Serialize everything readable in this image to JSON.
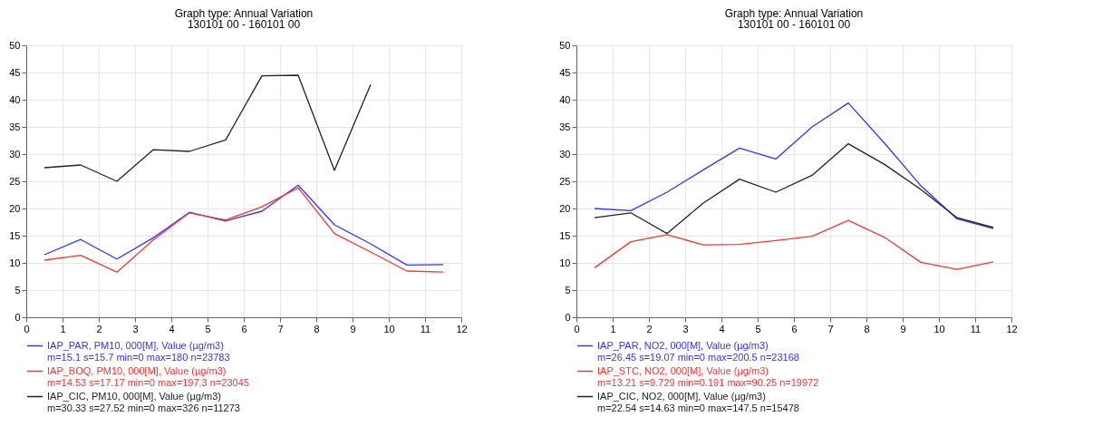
{
  "chart_data": [
    {
      "type": "line",
      "title": "Graph type: Annual Variation",
      "subtitle": "130101 00 - 160101 00",
      "x": [
        0.5,
        1.5,
        2.5,
        3.5,
        4.5,
        5.5,
        6.5,
        7.5,
        8.5,
        9.5,
        10.5,
        11.5
      ],
      "xlim": [
        0,
        12
      ],
      "xticks": [
        0,
        1,
        2,
        3,
        4,
        5,
        6,
        7,
        8,
        9,
        10,
        11,
        12
      ],
      "ylim": [
        0,
        50
      ],
      "yticks": [
        0,
        5,
        10,
        15,
        20,
        25,
        30,
        35,
        40,
        45,
        50
      ],
      "grid": true,
      "legend": "bottom",
      "series": [
        {
          "name": "IAP_PAR, PM10, 000[M], Value (µg/m3)",
          "color": "#3333ff",
          "values": [
            11.5,
            14.3,
            10.7,
            14.6,
            19.3,
            17.7,
            19.5,
            24.3,
            17.0,
            13.5,
            9.6,
            9.7
          ]
        },
        {
          "name": "IAP_BOQ, PM10, 000[M], Value (µg/m3)",
          "color": "#ff3333",
          "values": [
            10.5,
            11.4,
            8.3,
            14.2,
            19.2,
            17.9,
            20.3,
            23.8,
            15.4,
            12.0,
            8.5,
            8.3
          ]
        },
        {
          "name": "IAP_CIC, PM10, 000[M], Value (µg/m3)",
          "color": "#222222",
          "values": [
            27.5,
            28.0,
            25.0,
            30.8,
            30.5,
            32.6,
            44.4,
            44.5,
            27.0,
            42.8,
            null,
            null
          ]
        }
      ],
      "annotations": [
        "m=15.1 s=15.7 min=0 max=180 n=23783",
        "m=14.53 s=17.17 min=0 max=197.3 n=23045",
        "m=30.33 s=27.52 min=0 max=326 n=11273"
      ]
    },
    {
      "type": "line",
      "title": "Graph type: Annual Variation",
      "subtitle": "130101 00 - 160101 00",
      "x": [
        0.5,
        1.5,
        2.5,
        3.5,
        4.5,
        5.5,
        6.5,
        7.5,
        8.5,
        9.5,
        10.5,
        11.5
      ],
      "xlim": [
        0,
        12
      ],
      "xticks": [
        0,
        1,
        2,
        3,
        4,
        5,
        6,
        7,
        8,
        9,
        10,
        11,
        12
      ],
      "ylim": [
        0,
        50
      ],
      "yticks": [
        0,
        5,
        10,
        15,
        20,
        25,
        30,
        35,
        40,
        45,
        50
      ],
      "grid": true,
      "legend": "bottom",
      "series": [
        {
          "name": "IAP_PAR, NO2, 000[M], Value (µg/m3)",
          "color": "#3333ff",
          "values": [
            20.0,
            19.6,
            23.0,
            27.1,
            31.1,
            29.1,
            35.0,
            39.4,
            32.0,
            24.2,
            18.1,
            16.3
          ]
        },
        {
          "name": "IAP_STC, NO2, 000[M], Value (µg/m3)",
          "color": "#ff3333",
          "values": [
            9.1,
            13.9,
            15.2,
            13.3,
            13.4,
            14.1,
            14.9,
            17.8,
            14.7,
            10.1,
            8.8,
            10.2
          ]
        },
        {
          "name": "IAP_CIC, NO2, 000[M], Value (µg/m3)",
          "color": "#222222",
          "values": [
            18.3,
            19.2,
            15.4,
            21.0,
            25.4,
            23.0,
            26.1,
            31.9,
            28.1,
            23.5,
            18.3,
            16.5
          ]
        }
      ],
      "annotations": [
        "m=26.45 s=19.07 min=0 max=200.5 n=23168",
        "m=13.21 s=9.729 min=0.191 max=90.25 n=19972",
        "m=22.54 s=14.63 min=0 max=147.5 n=15478"
      ]
    }
  ]
}
